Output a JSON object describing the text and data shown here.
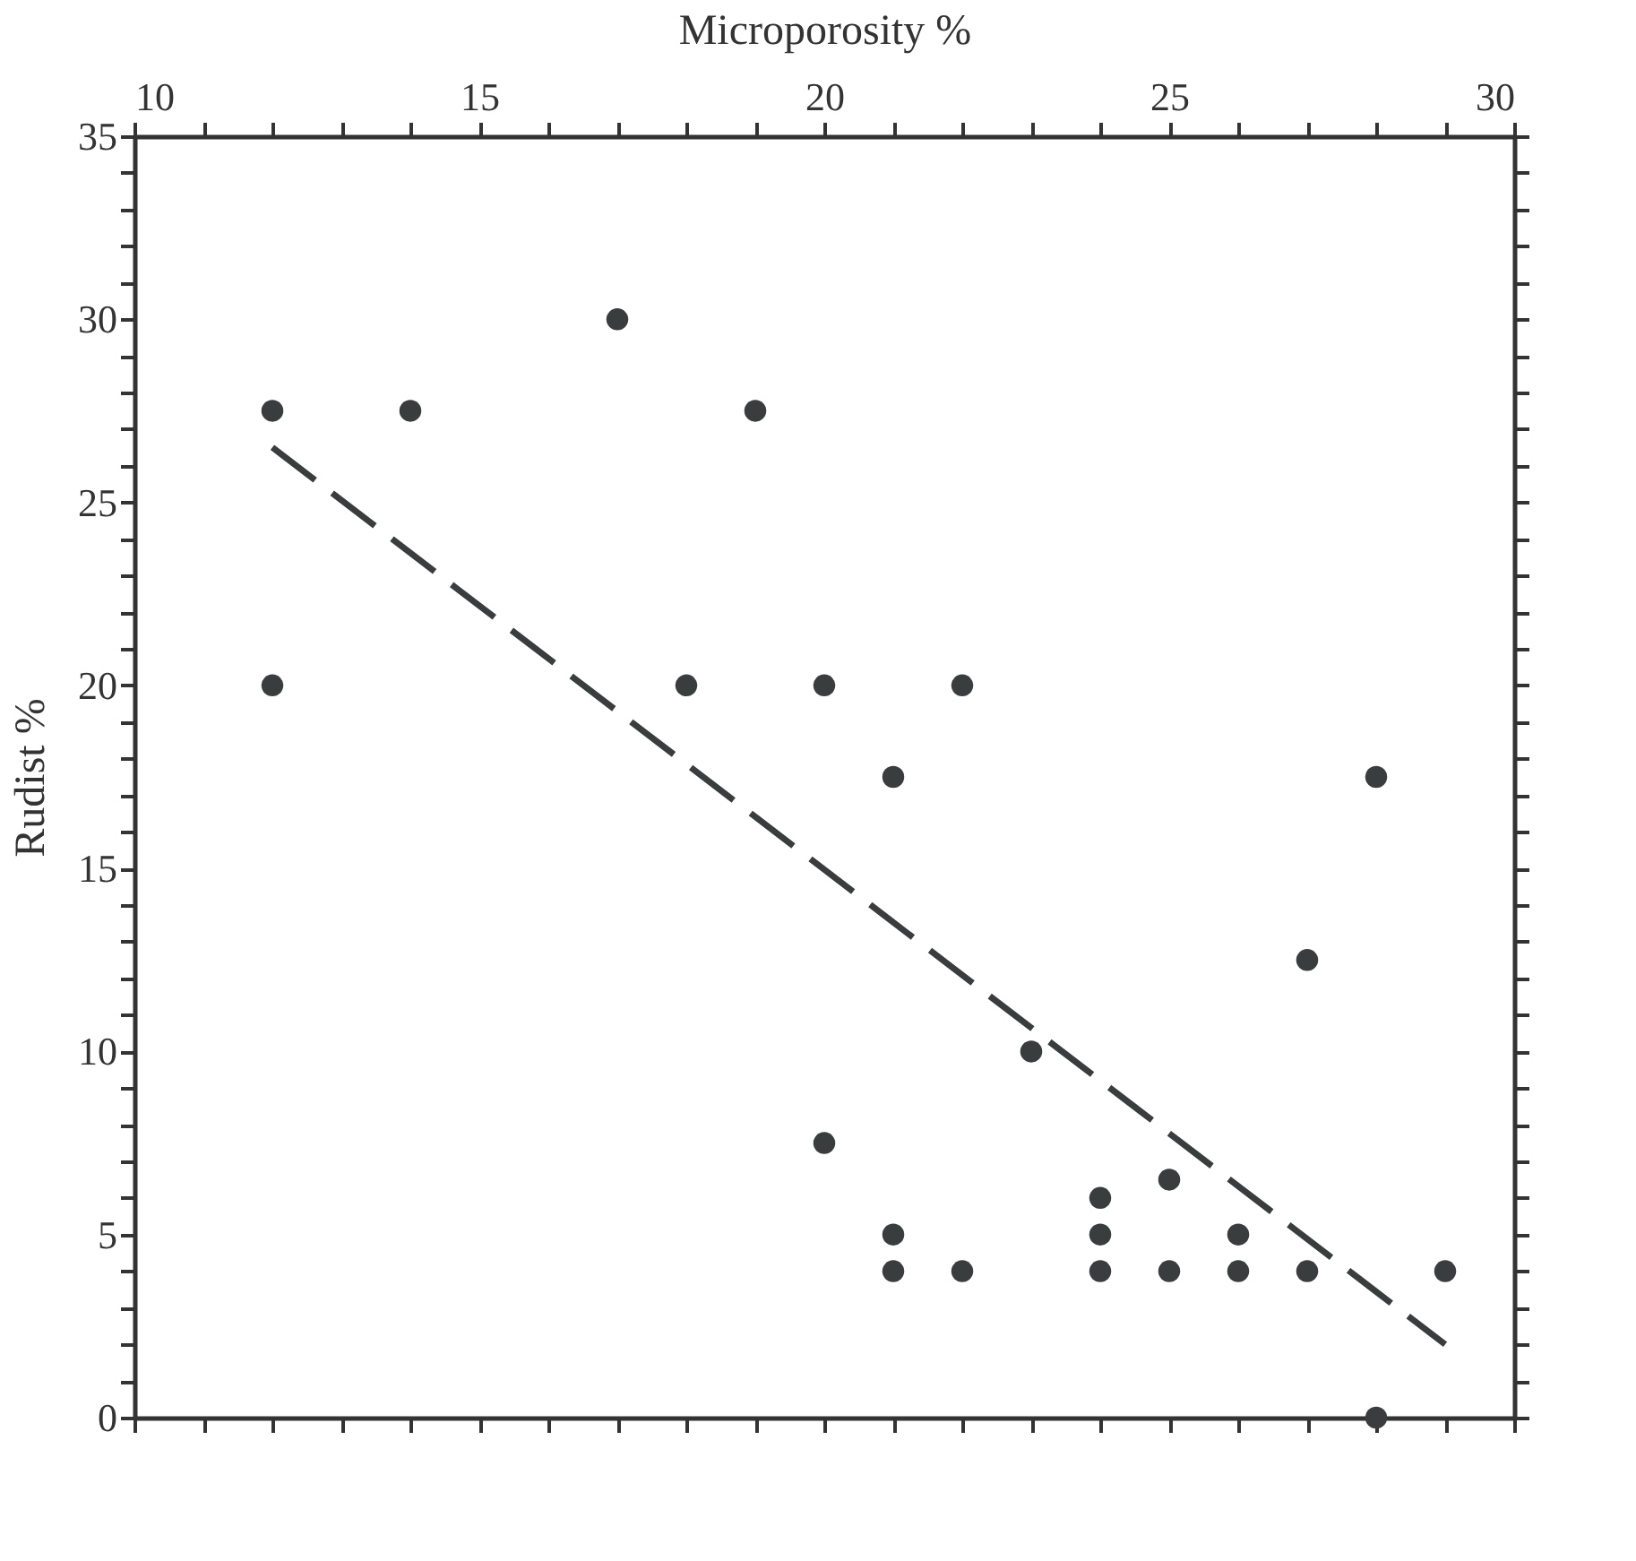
{
  "chart_data": {
    "type": "scatter",
    "xlabel": "Microporosity  %",
    "ylabel": "Rudist %",
    "x": [
      12,
      14,
      17,
      19,
      12,
      18,
      20,
      22,
      21,
      28,
      27,
      23,
      20,
      24,
      25,
      21,
      24,
      26,
      21,
      22,
      24,
      25,
      26,
      27,
      29,
      28
    ],
    "series": [
      {
        "color": "#3a3d3d",
        "values": [
          27.5,
          27.5,
          30,
          27.5,
          20,
          20,
          20,
          20,
          17.5,
          17.5,
          12.5,
          10,
          7.5,
          6,
          6.5,
          5,
          5,
          5,
          4,
          4,
          4,
          4,
          4,
          4,
          4,
          0
        ]
      },
      {
        "type": "line",
        "color": "#3a3d3d",
        "line_style": "dashed",
        "marker": "none",
        "x": [
          12,
          29
        ],
        "values": [
          26.5,
          2
        ]
      }
    ],
    "xlim": [
      10,
      30
    ],
    "ylim": [
      0,
      35
    ],
    "xticks": [
      10,
      {
        "value": 11,
        "label": null
      },
      {
        "value": 12,
        "label": null
      },
      {
        "value": 13,
        "label": null
      },
      {
        "value": 14,
        "label": null
      },
      15,
      {
        "value": 16,
        "label": null
      },
      {
        "value": 17,
        "label": null
      },
      {
        "value": 18,
        "label": null
      },
      {
        "value": 19,
        "label": null
      },
      20,
      {
        "value": 21,
        "label": null
      },
      {
        "value": 22,
        "label": null
      },
      {
        "value": 23,
        "label": null
      },
      {
        "value": 24,
        "label": null
      },
      25,
      {
        "value": 26,
        "label": null
      },
      {
        "value": 27,
        "label": null
      },
      {
        "value": 28,
        "label": null
      },
      {
        "value": 29,
        "label": null
      },
      30
    ],
    "yticks": [
      0,
      {
        "value": 1,
        "label": null
      },
      {
        "value": 2,
        "label": null
      },
      {
        "value": 3,
        "label": null
      },
      {
        "value": 4,
        "label": null
      },
      5,
      {
        "value": 6,
        "label": null
      },
      {
        "value": 7,
        "label": null
      },
      {
        "value": 8,
        "label": null
      },
      {
        "value": 9,
        "label": null
      },
      10,
      {
        "value": 11,
        "label": null
      },
      {
        "value": 12,
        "label": null
      },
      {
        "value": 13,
        "label": null
      },
      {
        "value": 14,
        "label": null
      },
      15,
      {
        "value": 16,
        "label": null
      },
      {
        "value": 17,
        "label": null
      },
      {
        "value": 18,
        "label": null
      },
      {
        "value": 19,
        "label": null
      },
      20,
      {
        "value": 21,
        "label": null
      },
      {
        "value": 22,
        "label": null
      },
      {
        "value": 23,
        "label": null
      },
      {
        "value": 24,
        "label": null
      },
      25,
      {
        "value": 26,
        "label": null
      },
      {
        "value": 27,
        "label": null
      },
      {
        "value": 28,
        "label": null
      },
      {
        "value": 29,
        "label": null
      },
      30,
      {
        "value": 31,
        "label": null
      },
      {
        "value": 32,
        "label": null
      },
      {
        "value": 33,
        "label": null
      },
      {
        "value": 34,
        "label": null
      },
      35
    ],
    "tick_labels": "xy",
    "grid": false,
    "marker": "circle"
  }
}
